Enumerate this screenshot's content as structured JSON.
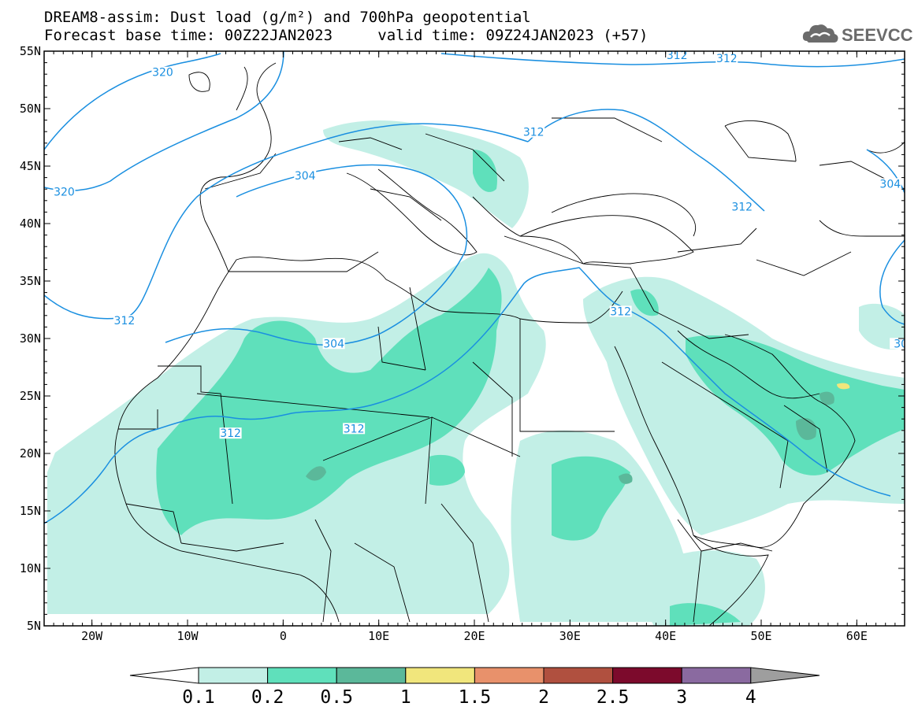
{
  "header": {
    "title_line1": "DREAM8-assim: Dust load (g/m²) and 700hPa geopotential",
    "base_time_label": "Forecast base time: 00Z22JAN2023",
    "valid_time_label": "valid time: 09Z24JAN2023 (+57)",
    "logo_text": "SEEVCCC",
    "logo_icon": "cloud-logo-icon"
  },
  "map": {
    "lon_range": [
      -25,
      65
    ],
    "lat_range": [
      5,
      55
    ],
    "lon_ticks": [
      {
        "value": -20,
        "label": "20W"
      },
      {
        "value": -10,
        "label": "10W"
      },
      {
        "value": 0,
        "label": "0"
      },
      {
        "value": 10,
        "label": "10E"
      },
      {
        "value": 20,
        "label": "20E"
      },
      {
        "value": 30,
        "label": "30E"
      },
      {
        "value": 40,
        "label": "40E"
      },
      {
        "value": 50,
        "label": "50E"
      },
      {
        "value": 60,
        "label": "60E"
      }
    ],
    "lat_ticks": [
      {
        "value": 55,
        "label": "55N"
      },
      {
        "value": 50,
        "label": "50N"
      },
      {
        "value": 45,
        "label": "45N"
      },
      {
        "value": 40,
        "label": "40N"
      },
      {
        "value": 35,
        "label": "35N"
      },
      {
        "value": 30,
        "label": "30N"
      },
      {
        "value": 25,
        "label": "25N"
      },
      {
        "value": 20,
        "label": "20N"
      },
      {
        "value": 15,
        "label": "15N"
      },
      {
        "value": 10,
        "label": "10N"
      },
      {
        "value": 5,
        "label": "5N"
      }
    ],
    "contour_color": "#1a8fe0",
    "contour_labels": [
      {
        "text": "320",
        "lon": -12.6,
        "lat": 53.1
      },
      {
        "text": "320",
        "lon": -22.9,
        "lat": 42.7
      },
      {
        "text": "312",
        "lon": -16.6,
        "lat": 31.5
      },
      {
        "text": "304",
        "lon": 2.3,
        "lat": 44.1
      },
      {
        "text": "304",
        "lon": 5.3,
        "lat": 29.5
      },
      {
        "text": "312",
        "lon": 7.4,
        "lat": 22.1
      },
      {
        "text": "312",
        "lon": -5.5,
        "lat": 21.7
      },
      {
        "text": "312",
        "lon": 26.2,
        "lat": 47.9
      },
      {
        "text": "312",
        "lon": 41.2,
        "lat": 54.6
      },
      {
        "text": "312",
        "lon": 46.4,
        "lat": 54.3
      },
      {
        "text": "312",
        "lon": 48.0,
        "lat": 41.4
      },
      {
        "text": "312",
        "lon": 35.3,
        "lat": 32.3
      },
      {
        "text": "304",
        "lon": 63.5,
        "lat": 43.4
      },
      {
        "text": "30",
        "lon": 64.6,
        "lat": 29.5
      }
    ]
  },
  "legend": {
    "colors": [
      "#c2efe6",
      "#5fe0bb",
      "#5bb89a",
      "#f1e67c",
      "#e8916b",
      "#b0503f",
      "#7c0a2c",
      "#8a6aa0"
    ],
    "left_arrow_color": "#ffffff",
    "right_arrow_color": "#9e9e9e",
    "labels": [
      "0.1",
      "0.2",
      "0.5",
      "1",
      "1.5",
      "2",
      "2.5",
      "3",
      "4"
    ]
  }
}
